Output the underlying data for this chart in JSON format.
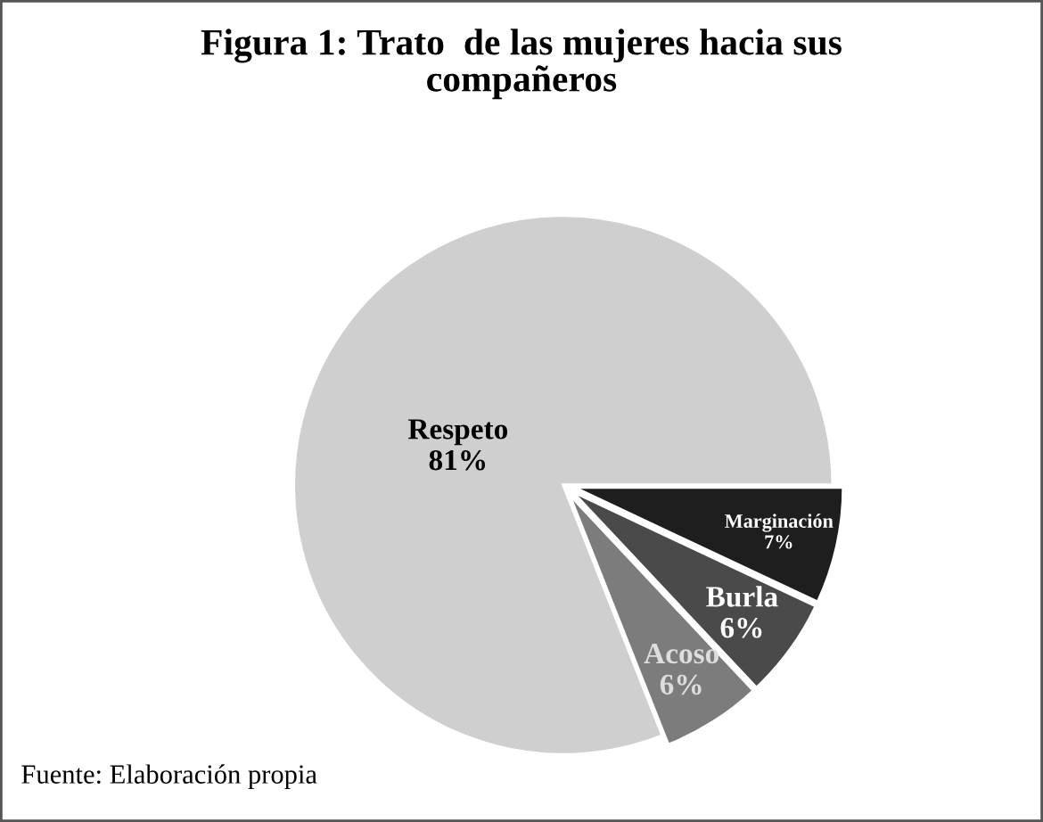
{
  "chart_data": {
    "type": "pie",
    "title": "Figura 1: Trato  de las mujeres hacia sus compañeros",
    "categories": [
      "Marginación",
      "Burla",
      "Acoso",
      "Respeto"
    ],
    "values": [
      7,
      6,
      6,
      81
    ],
    "value_labels": [
      "7%",
      "6%",
      "6%",
      "81%"
    ],
    "colors": [
      "#1e1e1e",
      "#4a4a4a",
      "#7c7c7c",
      "#cfcfcf"
    ],
    "annotations": [
      "Fuente: Elaboración propia"
    ],
    "legend": false
  }
}
